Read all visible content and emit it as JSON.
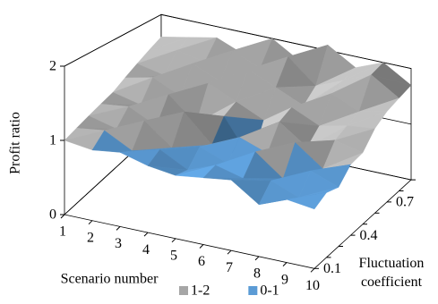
{
  "chart_data": {
    "type": "surface",
    "y_label": "Profit ratio",
    "x_label": "Scenario number",
    "z_label": "Fluctuation coefficient",
    "categories": [
      "1",
      "2",
      "3",
      "4",
      "5",
      "6",
      "7",
      "8",
      "9",
      "10"
    ],
    "z": [
      "0.1",
      null,
      null,
      "0.4",
      null,
      null,
      "0.7",
      null,
      null
    ],
    "values": [
      [
        1.0,
        0.95,
        1.0,
        0.9,
        0.85,
        0.9,
        0.95,
        0.7,
        0.85,
        0.8
      ],
      [
        1.05,
        1.1,
        0.9,
        1.0,
        0.8,
        0.95,
        0.85,
        0.9,
        0.75,
        0.9
      ],
      [
        1.1,
        1.0,
        1.2,
        0.9,
        1.0,
        0.85,
        1.1,
        0.8,
        1.0,
        0.85
      ],
      [
        1.15,
        1.2,
        1.0,
        1.3,
        0.9,
        1.1,
        0.95,
        1.2,
        0.9,
        1.05
      ],
      [
        1.2,
        1.1,
        1.35,
        1.0,
        1.2,
        0.6,
        1.3,
        1.0,
        1.2,
        1.1
      ],
      [
        1.3,
        1.4,
        1.2,
        1.5,
        1.3,
        1.1,
        1.4,
        1.2,
        1.3,
        1.35
      ],
      [
        1.4,
        1.3,
        1.6,
        1.4,
        1.7,
        1.5,
        1.3,
        1.6,
        1.4,
        1.5
      ],
      [
        1.5,
        1.6,
        1.5,
        1.8,
        1.6,
        1.9,
        1.5,
        1.7,
        1.9,
        1.6
      ],
      [
        1.6,
        1.7,
        1.8,
        1.6,
        2.0,
        1.7,
        2.1,
        1.8,
        2.0,
        1.7
      ]
    ],
    "ylim": [
      0,
      2
    ],
    "yticks": [
      0,
      1,
      2
    ],
    "bands": [
      {
        "name": "1-2",
        "color": "#a6a6a6"
      },
      {
        "name": "0-1",
        "color": "#5b9bd5"
      }
    ]
  }
}
